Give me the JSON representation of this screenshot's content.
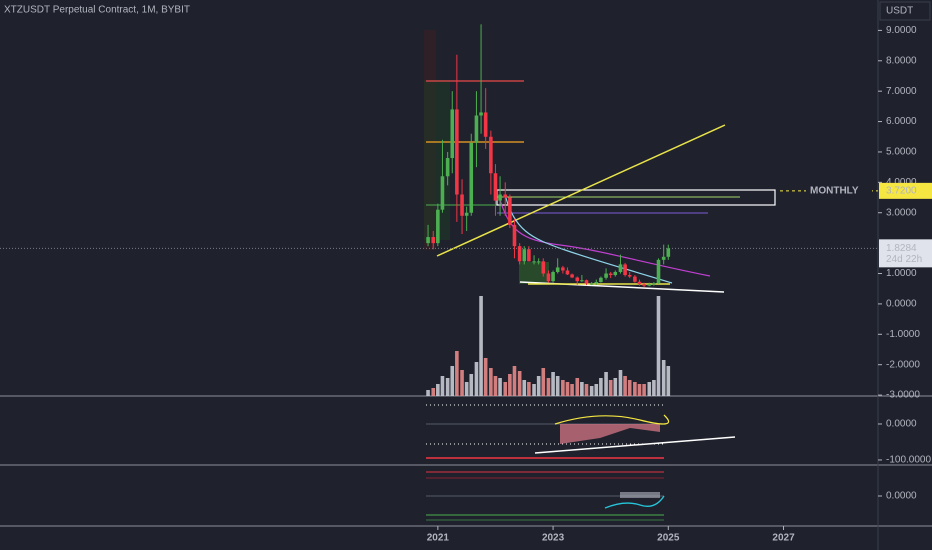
{
  "header": "XTZUSDT Perpetual Contract, 1M, BYBIT",
  "currency": "USDT",
  "countdown": "24d 22h",
  "chart_data": {
    "type": "candlestick",
    "x": [
      2020.83,
      2020.92,
      2021.0,
      2021.08,
      2021.17,
      2021.25,
      2021.33,
      2021.42,
      2021.5,
      2021.58,
      2021.67,
      2021.75,
      2021.83,
      2021.92,
      2022.0,
      2022.08,
      2022.17,
      2022.25,
      2022.33,
      2022.42,
      2022.5,
      2022.58,
      2022.67,
      2022.75,
      2022.83,
      2022.92,
      2023.0,
      2023.08,
      2023.17,
      2023.25,
      2023.33,
      2023.42,
      2023.5,
      2023.58,
      2023.67,
      2023.75,
      2023.83,
      2023.92,
      2024.0,
      2024.08,
      2024.17,
      2024.25,
      2024.33,
      2024.42,
      2024.5,
      2024.58,
      2024.67,
      2024.75,
      2024.83,
      2024.92,
      2025.0
    ],
    "open": [
      2.0,
      2.2,
      2.0,
      3.1,
      4.2,
      4.8,
      6.4,
      3.6,
      2.9,
      3.0,
      5.3,
      6.2,
      6.3,
      5.5,
      4.3,
      3.4,
      3.6,
      3.5,
      2.6,
      1.9,
      1.4,
      1.8,
      1.4,
      1.4,
      1.4,
      1.0,
      0.75,
      1.05,
      1.2,
      1.1,
      0.97,
      0.87,
      0.75,
      0.78,
      0.67,
      0.67,
      0.72,
      0.86,
      1.0,
      0.95,
      1.05,
      1.3,
      0.95,
      0.9,
      0.73,
      0.65,
      0.6,
      0.65,
      0.68,
      1.45,
      1.55
    ],
    "high": [
      2.6,
      2.4,
      3.3,
      5.4,
      5.0,
      7.0,
      8.2,
      4.1,
      3.2,
      5.6,
      7.0,
      9.2,
      7.1,
      5.7,
      4.6,
      4.2,
      4.0,
      3.6,
      2.8,
      2.0,
      1.9,
      1.9,
      1.6,
      1.5,
      1.5,
      1.1,
      1.1,
      1.5,
      1.25,
      1.2,
      1.0,
      0.9,
      0.95,
      0.8,
      0.72,
      0.8,
      0.9,
      1.17,
      1.05,
      1.1,
      1.62,
      1.35,
      1.05,
      0.95,
      0.8,
      0.7,
      0.7,
      0.72,
      1.5,
      1.95,
      1.95
    ],
    "low": [
      1.9,
      1.8,
      1.9,
      3.0,
      3.9,
      4.3,
      2.7,
      2.3,
      2.4,
      2.9,
      4.5,
      5.6,
      5.1,
      3.6,
      2.9,
      2.9,
      2.9,
      2.5,
      1.5,
      1.3,
      1.3,
      1.4,
      1.3,
      1.3,
      0.9,
      0.7,
      0.7,
      1.0,
      1.0,
      0.95,
      0.85,
      0.63,
      0.72,
      0.62,
      0.62,
      0.63,
      0.7,
      0.8,
      0.85,
      0.9,
      1.0,
      0.9,
      0.85,
      0.7,
      0.6,
      0.55,
      0.58,
      0.6,
      0.66,
      1.3,
      1.45
    ],
    "close": [
      2.2,
      2.0,
      3.1,
      4.2,
      4.8,
      6.4,
      3.6,
      2.9,
      3.0,
      5.3,
      6.2,
      6.3,
      5.5,
      4.3,
      3.4,
      3.6,
      3.5,
      2.6,
      1.9,
      1.4,
      1.8,
      1.4,
      1.4,
      1.4,
      1.0,
      0.75,
      1.05,
      1.2,
      1.1,
      0.97,
      0.87,
      0.75,
      0.78,
      0.67,
      0.67,
      0.72,
      0.86,
      1.0,
      0.95,
      1.05,
      1.3,
      0.95,
      0.9,
      0.73,
      0.65,
      0.6,
      0.65,
      0.68,
      1.45,
      1.55,
      1.8284
    ],
    "volume": [
      6,
      8,
      12,
      20,
      18,
      30,
      45,
      26,
      14,
      22,
      34,
      100,
      38,
      28,
      20,
      18,
      14,
      22,
      30,
      25,
      16,
      14,
      12,
      20,
      28,
      18,
      24,
      20,
      16,
      14,
      12,
      18,
      14,
      12,
      10,
      12,
      18,
      24,
      16,
      18,
      26,
      20,
      16,
      14,
      12,
      12,
      14,
      16,
      100,
      36,
      30
    ],
    "up_color": "#4caf50",
    "down_color": "#f23645",
    "volume_up_color": "#d1d4dc",
    "volume_down_color": "#f28e8e",
    "xlim": [
      2013.4,
      2028.64
    ],
    "xticks": [
      2021,
      2023,
      2025,
      2027
    ],
    "ylim": [
      -3.03,
      10.0
    ],
    "yticks": [
      {
        "value": 9,
        "label": "9.0000"
      },
      {
        "value": 8,
        "label": "8.0000"
      },
      {
        "value": 7,
        "label": "7.0000"
      },
      {
        "value": 6,
        "label": "6.0000"
      },
      {
        "value": 5,
        "label": "5.0000"
      },
      {
        "value": 4,
        "label": "4.0000"
      },
      {
        "value": 3,
        "label": "3.0000"
      },
      {
        "value": 1,
        "label": "1.0000"
      },
      {
        "value": 0,
        "label": "0.0000"
      },
      {
        "value": -1,
        "label": "-1.0000"
      },
      {
        "value": -2,
        "label": "-2.0000"
      },
      {
        "value": -3,
        "label": "-3.0000"
      }
    ],
    "grid": false,
    "annotations": [
      {
        "text": "MONTHLY",
        "value": {
          "value": 3.72,
          "label": "3.7200"
        },
        "color": "#f5e642"
      }
    ]
  },
  "indicator_panes": [
    {
      "ylim": [
        -114,
        75
      ],
      "yticks": [
        {
          "value": 0,
          "label": "0.0000"
        },
        {
          "value": -100,
          "label": "-100.0000"
        }
      ]
    },
    {
      "ylim": [
        -1,
        1
      ],
      "yticks": [
        {
          "value": 0,
          "label": "0.0000"
        }
      ]
    }
  ]
}
